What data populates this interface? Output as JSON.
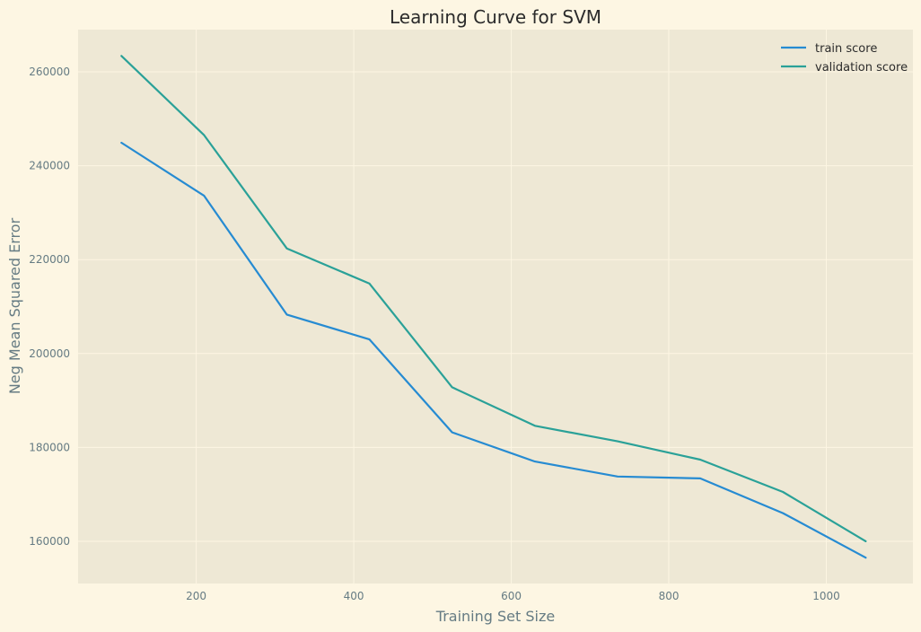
{
  "chart_data": {
    "type": "line",
    "title": "Learning Curve for SVM",
    "xlabel": "Training Set Size",
    "ylabel": "Neg Mean Squared Error",
    "xlim": [
      50,
      1110
    ],
    "ylim": [
      151000,
      269000
    ],
    "xticks": [
      200,
      400,
      600,
      800,
      1000
    ],
    "yticks": [
      160000,
      180000,
      200000,
      220000,
      240000,
      260000
    ],
    "grid": true,
    "legend_position": "top-right",
    "x": [
      105,
      210,
      315,
      420,
      525,
      630,
      735,
      840,
      945,
      1050
    ],
    "series": [
      {
        "name": "train score",
        "color": "#268bd2",
        "values": [
          244900,
          233600,
          208300,
          203000,
          183200,
          177000,
          173800,
          173400,
          166000,
          156500
        ]
      },
      {
        "name": "validation score",
        "color": "#2aa198",
        "values": [
          263400,
          246500,
          222400,
          214900,
          192800,
          184600,
          181300,
          177400,
          170500,
          160000
        ]
      }
    ],
    "colors": {
      "figure_background": "#fdf6e3",
      "plot_background": "#eee8d5"
    }
  }
}
